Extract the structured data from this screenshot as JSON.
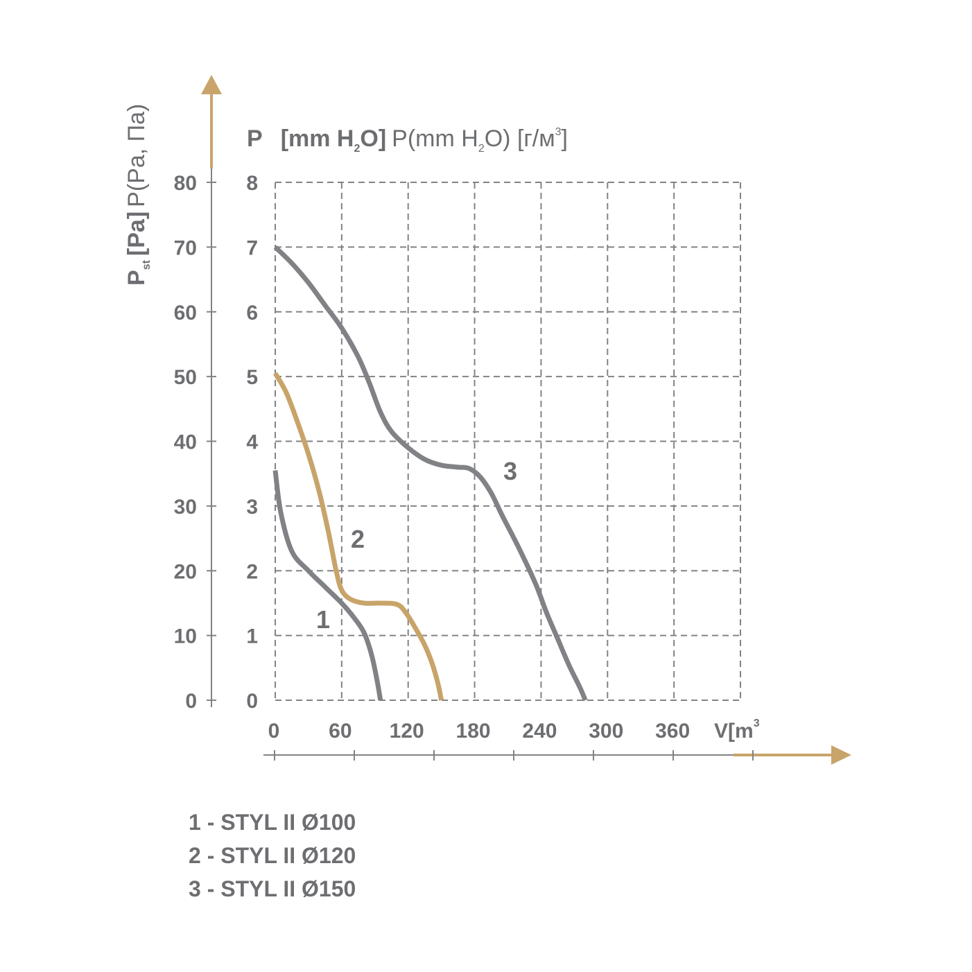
{
  "colors": {
    "text": "#6d6e71",
    "grid": "#808285",
    "accent": "#c8a46a",
    "curve_gray": "#808285"
  },
  "axes": {
    "y_left_title": {
      "main": "P",
      "sub": "st",
      "bold": "[Pa]",
      "regular": "P(Pa, Па)"
    },
    "y_inner_title": {
      "main": "P",
      "bold": "[mm H",
      "bold_sub": "2",
      "bold_end": "O]",
      "regular": "P(mm H",
      "regular_sub": "2",
      "regular_end": "O) [г/м",
      "regular_sup": "3",
      "regular_close": "]"
    },
    "x_title": {
      "text": "V[m",
      "sup": "3"
    }
  },
  "curve_labels": [
    "1",
    "2",
    "3"
  ],
  "legend": [
    "1 - STYL II Ø100",
    "2 - STYL II Ø120",
    "3 - STYL II Ø150"
  ],
  "chart_data": {
    "type": "line",
    "x_unit": "V[m³]",
    "x_ticks": [
      0,
      60,
      120,
      180,
      240,
      300,
      360
    ],
    "xlim": [
      0,
      420
    ],
    "y_ticks_pa": [
      0,
      10,
      20,
      30,
      40,
      50,
      60,
      70,
      80
    ],
    "y_ticks_mmh2o": [
      0,
      1,
      2,
      3,
      4,
      5,
      6,
      7,
      8
    ],
    "ylim_pa": [
      0,
      80
    ],
    "grid": true,
    "series": [
      {
        "name": "1",
        "color": "#808285",
        "points": [
          [
            0,
            35.5
          ],
          [
            5,
            29
          ],
          [
            15,
            23
          ],
          [
            30,
            20
          ],
          [
            45,
            17.5
          ],
          [
            60,
            15
          ],
          [
            70,
            13
          ],
          [
            80,
            10.5
          ],
          [
            87,
            7
          ],
          [
            92,
            3
          ],
          [
            95,
            0
          ]
        ]
      },
      {
        "name": "2",
        "color": "#c8a46a",
        "points": [
          [
            0,
            50.5
          ],
          [
            10,
            47.5
          ],
          [
            20,
            43
          ],
          [
            30,
            38
          ],
          [
            40,
            32
          ],
          [
            48,
            26
          ],
          [
            55,
            20
          ],
          [
            60,
            17
          ],
          [
            68,
            15.6
          ],
          [
            80,
            15
          ],
          [
            95,
            15
          ],
          [
            110,
            14.8
          ],
          [
            118,
            13.5
          ],
          [
            127,
            11
          ],
          [
            135,
            8.5
          ],
          [
            142,
            5.5
          ],
          [
            147,
            2.5
          ],
          [
            150,
            0
          ]
        ]
      },
      {
        "name": "3",
        "color": "#808285",
        "points": [
          [
            0,
            70
          ],
          [
            15,
            67.5
          ],
          [
            30,
            64.5
          ],
          [
            45,
            61
          ],
          [
            60,
            57.5
          ],
          [
            75,
            53
          ],
          [
            85,
            49
          ],
          [
            95,
            44.5
          ],
          [
            105,
            41.5
          ],
          [
            120,
            39
          ],
          [
            135,
            37.2
          ],
          [
            150,
            36.3
          ],
          [
            165,
            36
          ],
          [
            175,
            35.8
          ],
          [
            185,
            34.5
          ],
          [
            195,
            32
          ],
          [
            205,
            28.5
          ],
          [
            220,
            23.5
          ],
          [
            235,
            18
          ],
          [
            245,
            13.5
          ],
          [
            255,
            9.5
          ],
          [
            265,
            5.5
          ],
          [
            275,
            2
          ],
          [
            280,
            0
          ]
        ]
      }
    ]
  }
}
